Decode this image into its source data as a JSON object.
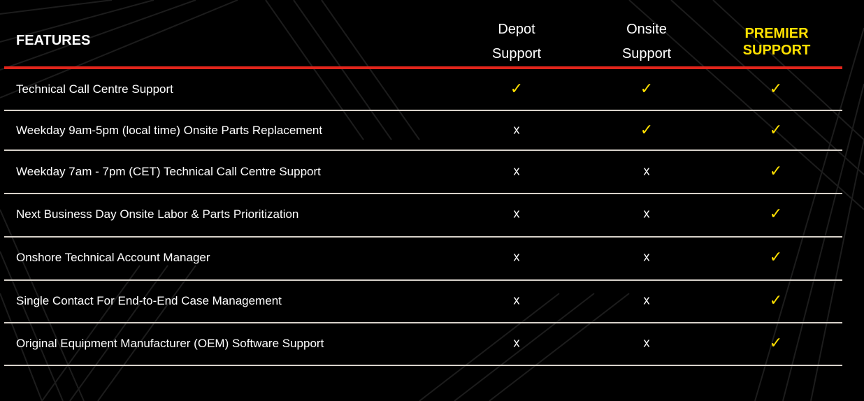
{
  "header": {
    "features_label": "FEATURES",
    "columns": [
      "Depot Support",
      "Onsite Support",
      "PREMIER SUPPORT"
    ],
    "column_lines": [
      [
        "Depot",
        "Support"
      ],
      [
        "Onsite",
        "Support"
      ],
      [
        "PREMIER",
        "SUPPORT"
      ]
    ]
  },
  "colors": {
    "accent_red": "#e0251b",
    "check_yellow": "#ffe000",
    "background": "#000000"
  },
  "symbols": {
    "yes": "✓",
    "no": "x"
  },
  "rows": [
    {
      "feature": "Technical Call Centre Support",
      "values": [
        "✓",
        "✓",
        "✓"
      ]
    },
    {
      "feature": "Weekday 9am-5pm (local time) Onsite Parts Replacement",
      "values": [
        "x",
        "✓",
        "✓"
      ]
    },
    {
      "feature": "Weekday 7am - 7pm (CET) Technical Call Centre Support",
      "values": [
        "x",
        "x",
        "✓"
      ]
    },
    {
      "feature": "Next Business Day Onsite Labor & Parts Prioritization",
      "values": [
        "x",
        "x",
        "✓"
      ]
    },
    {
      "feature": "Onshore Technical Account Manager",
      "values": [
        "x",
        "x",
        "✓"
      ]
    },
    {
      "feature": "Single Contact For End-to-End Case Management",
      "values": [
        "x",
        "x",
        "✓"
      ]
    },
    {
      "feature": "Original Equipment Manufacturer (OEM) Software Support",
      "values": [
        "x",
        "x",
        "✓"
      ]
    }
  ]
}
